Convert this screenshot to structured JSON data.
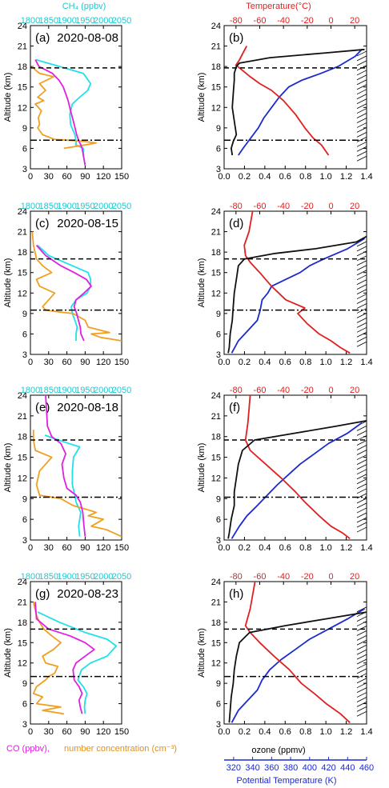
{
  "figure": {
    "ch4_axis_title": "CH₄ (ppbv)",
    "temp_axis_title": "Temperature(°C)",
    "ozone_axis_title": "ozone (ppmv)",
    "theta_axis_title": "Potential Temperature (K)",
    "co_legend": "CO (ppbv),",
    "nc_legend": "number concentration (cm⁻³)",
    "ylabel": "Altitude (km)"
  },
  "colors": {
    "co": "#e020e0",
    "ch4": "#20e0e8",
    "nc": "#f0a020",
    "temperature": "#e02020",
    "ozone": "#101010",
    "theta": "#1a2ad0",
    "wind": "#000000"
  },
  "axes": {
    "altitude": {
      "min": 3,
      "max": 24,
      "ticks": [
        "3",
        "6",
        "9",
        "12",
        "15",
        "18",
        "21",
        "24"
      ],
      "tick_values": [
        3,
        6,
        9,
        12,
        15,
        18,
        21,
        24
      ]
    },
    "co": {
      "min": 0,
      "max": 150,
      "ticks": [
        "0",
        "30",
        "60",
        "90",
        "120",
        "150"
      ],
      "tick_values": [
        0,
        30,
        60,
        90,
        120,
        150
      ]
    },
    "ch4": {
      "min": 1800,
      "max": 2050,
      "ticks": [
        "1800",
        "1850",
        "1900",
        "1950",
        "2000",
        "2050"
      ],
      "tick_values": [
        1800,
        1850,
        1900,
        1950,
        2000,
        2050
      ]
    },
    "ozone": {
      "min": 0,
      "max": 1.4,
      "ticks": [
        "0.0",
        "0.2",
        "0.4",
        "0.6",
        "0.8",
        "1.0",
        "1.2",
        "1.4"
      ],
      "tick_values": [
        0,
        0.2,
        0.4,
        0.6,
        0.8,
        1.0,
        1.2,
        1.4
      ]
    },
    "temperature": {
      "min": -90,
      "max": 30,
      "ticks": [
        "-80",
        "-60",
        "-40",
        "-20",
        "0",
        "20"
      ],
      "tick_values": [
        -80,
        -60,
        -40,
        -20,
        0,
        20
      ]
    },
    "theta": {
      "min": 310,
      "max": 460,
      "ticks": [
        "320",
        "340",
        "360",
        "380",
        "400",
        "420",
        "440",
        "460"
      ],
      "tick_values": [
        320,
        340,
        360,
        380,
        400,
        420,
        440,
        460
      ]
    }
  },
  "chart_data": [
    {
      "type": "line",
      "panel": "(a)",
      "date": "2020-08-08",
      "series": [
        {
          "name": "CO (ppbv)",
          "x": [
            90,
            87,
            85,
            83,
            80,
            76,
            72,
            66,
            62,
            58,
            54,
            47,
            36,
            14,
            8
          ],
          "y": [
            3.5,
            5,
            6,
            6.5,
            7,
            8,
            9.5,
            11.5,
            13,
            14,
            15,
            16,
            17,
            18,
            19
          ]
        },
        {
          "name": "CH4 (ppbv)",
          "x": [
            1950,
            1945,
            1945,
            1925,
            1925,
            1922,
            1910,
            1908,
            1915,
            1935,
            1957,
            1965,
            1945,
            1880,
            1815
          ],
          "y": [
            3.5,
            5,
            6,
            6.5,
            7,
            8,
            9.5,
            11,
            12.5,
            13.5,
            14.5,
            15.5,
            17,
            18,
            19
          ]
        },
        {
          "name": "number concentration (cm-3)",
          "x": [
            55,
            90,
            108,
            80,
            40,
            20,
            12,
            15,
            13,
            18,
            8,
            22,
            12,
            25,
            15,
            38,
            15,
            8,
            3
          ],
          "y": [
            6,
            6.5,
            6.8,
            7.1,
            7.3,
            8,
            9,
            9.5,
            10.5,
            11.5,
            12.5,
            13,
            13.5,
            14.5,
            15.5,
            16.5,
            17,
            17.5,
            18
          ]
        }
      ],
      "trop_lines": {
        "cold_point": 17.8,
        "lapse_rate": 7.2
      }
    },
    {
      "type": "line",
      "panel": "(b)",
      "date": "2020-08-08",
      "series": [
        {
          "name": "ozone (ppmv)",
          "x": [
            0.08,
            0.07,
            0.09,
            0.12,
            0.1,
            0.08,
            0.09,
            0.1,
            0.1,
            0.11,
            0.12,
            0.15,
            0.45,
            1.0,
            1.38
          ],
          "y": [
            5,
            6,
            7,
            8,
            10,
            12,
            14,
            16,
            17,
            17.5,
            18,
            18.5,
            19.3,
            20,
            20.5
          ]
        },
        {
          "name": "Temperature",
          "x": [
            -2,
            -8,
            -15,
            -22,
            -30,
            -40,
            -50,
            -60,
            -68,
            -75,
            -80,
            -77,
            -74,
            -71
          ],
          "y": [
            5,
            6.5,
            7.5,
            9,
            11,
            13,
            14.5,
            15.5,
            16.5,
            17.5,
            18.2,
            19,
            20,
            21
          ]
        },
        {
          "name": "Potential Temperature (K)",
          "x": [
            325,
            330,
            338,
            346,
            352,
            360,
            368,
            378,
            392,
            412,
            430,
            448,
            455
          ],
          "y": [
            5,
            6,
            7.5,
            9,
            10.5,
            12,
            13.5,
            15,
            16,
            17,
            18,
            19.5,
            20.5
          ]
        }
      ],
      "trop_lines": {
        "cold_point": 17.8,
        "lapse_rate": 7.2
      }
    },
    {
      "type": "line",
      "panel": "(c)",
      "date": "2020-08-15",
      "series": [
        {
          "name": "CO (ppbv)",
          "x": [
            88,
            83,
            82,
            79,
            76,
            72,
            75,
            88,
            100,
            92,
            72,
            50,
            25,
            10
          ],
          "y": [
            5,
            6,
            7,
            8,
            9,
            10,
            11,
            12,
            13,
            14,
            15,
            16,
            17.5,
            19
          ]
        },
        {
          "name": "CH4 (ppbv)",
          "x": [
            1925,
            1925,
            1928,
            1922,
            1915,
            1912,
            1925,
            1955,
            1965,
            1965,
            1958,
            1915,
            1850,
            1820
          ],
          "y": [
            5,
            6,
            7,
            8,
            9,
            10,
            11,
            12,
            13,
            14,
            15,
            16,
            17.5,
            19
          ]
        },
        {
          "name": "number concentration (cm-3)",
          "x": [
            150,
            115,
            100,
            130,
            95,
            90,
            80,
            70,
            50,
            25,
            20,
            30,
            40,
            15,
            10,
            35,
            20,
            10,
            5,
            3
          ],
          "y": [
            5,
            5.5,
            6,
            6.2,
            7,
            8,
            8.5,
            9,
            9.2,
            9.5,
            10,
            11,
            12,
            13,
            14,
            15,
            16,
            17,
            19,
            21
          ]
        }
      ],
      "trop_lines": {
        "cold_point": 17,
        "lapse_rate": 9.5
      }
    },
    {
      "type": "line",
      "panel": "(d)",
      "date": "2020-08-15",
      "series": [
        {
          "name": "ozone (ppmv)",
          "x": [
            0.04,
            0.05,
            0.06,
            0.08,
            0.09,
            0.1,
            0.12,
            0.14,
            0.2,
            0.5,
            0.9,
            1.3,
            1.4
          ],
          "y": [
            3.2,
            4,
            6,
            8,
            10,
            12,
            14,
            16,
            17,
            17.8,
            18.5,
            19.5,
            20.3
          ]
        },
        {
          "name": "Temperature",
          "x": [
            16,
            8,
            0,
            -10,
            -20,
            -28,
            -22,
            -38,
            -50,
            -60,
            -68,
            -72,
            -73,
            -69,
            -66
          ],
          "y": [
            3.2,
            4,
            5,
            6,
            7.5,
            9,
            9.8,
            11,
            13,
            15,
            16.5,
            17.5,
            19,
            21,
            24
          ]
        },
        {
          "name": "Potential Temperature (K)",
          "x": [
            318,
            325,
            335,
            345,
            348,
            350,
            356,
            360,
            375,
            390,
            400,
            415,
            440,
            458
          ],
          "y": [
            3.2,
            5,
            6.5,
            8,
            9.5,
            11,
            12,
            13,
            14,
            15,
            16,
            17,
            18.5,
            20
          ]
        }
      ],
      "trop_lines": {
        "cold_point": 17,
        "lapse_rate": 9.5
      }
    },
    {
      "type": "line",
      "panel": "(e)",
      "date": "2020-08-18",
      "series": [
        {
          "name": "CO (ppbv)",
          "x": [
            90,
            88,
            86,
            82,
            75,
            60,
            55,
            52,
            58,
            50,
            35,
            28,
            25
          ],
          "y": [
            3.5,
            5,
            7,
            8.5,
            9.5,
            10.5,
            12,
            14,
            15.5,
            17,
            18,
            19.5,
            24
          ]
        },
        {
          "name": "CH4 (ppbv)",
          "x": [
            1935,
            1932,
            1938,
            1925,
            1922,
            1915,
            1915,
            1918,
            1935,
            1905,
            1860,
            1840
          ],
          "y": [
            3.5,
            5,
            7,
            8.5,
            9.5,
            11,
            13,
            15,
            16.5,
            17,
            17.8,
            18.2
          ]
        },
        {
          "name": "number concentration (cm-3)",
          "x": [
            150,
            125,
            100,
            120,
            95,
            108,
            90,
            70,
            50,
            15,
            10,
            15,
            35,
            8,
            5,
            5
          ],
          "y": [
            3.5,
            4.5,
            5,
            6,
            6.5,
            7,
            7.5,
            8,
            9,
            9.5,
            11,
            13,
            15,
            16,
            17.5,
            19
          ]
        }
      ],
      "trop_lines": {
        "cold_point": 17.5,
        "lapse_rate": 9.2
      }
    },
    {
      "type": "line",
      "panel": "(f)",
      "date": "2020-08-18",
      "series": [
        {
          "name": "ozone (ppmv)",
          "x": [
            0.04,
            0.05,
            0.07,
            0.1,
            0.1,
            0.12,
            0.14,
            0.18,
            0.3,
            0.7,
            1.1,
            1.4
          ],
          "y": [
            3.2,
            4,
            6,
            8,
            10,
            12,
            14,
            16,
            17.5,
            18.5,
            19.5,
            20.3
          ]
        },
        {
          "name": "Temperature",
          "x": [
            16,
            10,
            0,
            -10,
            -22,
            -30,
            -42,
            -55,
            -68,
            -72,
            -70,
            -68
          ],
          "y": [
            3.2,
            4,
            5,
            6.5,
            8.5,
            10,
            12,
            14,
            16,
            17.5,
            20,
            24
          ]
        },
        {
          "name": "Potential Temperature (K)",
          "x": [
            318,
            326,
            334,
            345,
            352,
            366,
            378,
            390,
            405,
            420,
            440,
            455
          ],
          "y": [
            3.2,
            5,
            6.5,
            8,
            9,
            11,
            12.5,
            14,
            15.5,
            17,
            18.5,
            20
          ]
        }
      ],
      "trop_lines": {
        "cold_point": 17.5,
        "lapse_rate": 9.2
      }
    },
    {
      "type": "line",
      "panel": "(g)",
      "date": "2020-08-23",
      "series": [
        {
          "name": "CO (ppbv)",
          "x": [
            85,
            82,
            80,
            85,
            80,
            72,
            70,
            75,
            90,
            105,
            90,
            65,
            30,
            10,
            8
          ],
          "y": [
            4.5,
            5.5,
            6.5,
            7.5,
            8.5,
            9.5,
            11,
            12,
            13,
            14,
            15,
            16,
            17,
            18.5,
            21
          ]
        },
        {
          "name": "CH4 (ppbv)",
          "x": [
            1950,
            1948,
            1950,
            1955,
            1945,
            1930,
            1940,
            1965,
            2010,
            2035,
            2010,
            1950,
            1880,
            1820
          ],
          "y": [
            4.5,
            5.5,
            6.5,
            7.5,
            8.5,
            9.5,
            11,
            12,
            13,
            14.5,
            15.5,
            16.5,
            18,
            19.5
          ]
        },
        {
          "name": "number concentration (cm-3)",
          "x": [
            55,
            20,
            50,
            10,
            15,
            20,
            5,
            10,
            25,
            30,
            40,
            45,
            25,
            20,
            38,
            50,
            35,
            22,
            15,
            10,
            5
          ],
          "y": [
            4.5,
            5,
            5.5,
            6,
            6.5,
            7,
            7.5,
            8.5,
            9.5,
            10,
            10.5,
            11.5,
            12,
            13,
            14,
            15,
            16,
            17,
            18,
            19,
            21
          ]
        }
      ],
      "trop_lines": {
        "cold_point": 17,
        "lapse_rate": 10
      }
    },
    {
      "type": "line",
      "panel": "(h)",
      "date": "2020-08-23",
      "series": [
        {
          "name": "ozone (ppmv)",
          "x": [
            0.05,
            0.06,
            0.07,
            0.09,
            0.1,
            0.12,
            0.15,
            0.25,
            0.6,
            1.0,
            1.4
          ],
          "y": [
            3.2,
            5,
            7,
            9,
            11,
            13,
            15,
            16.5,
            17.5,
            18.5,
            19.5
          ]
        },
        {
          "name": "Temperature",
          "x": [
            16,
            8,
            -4,
            -14,
            -25,
            -35,
            -48,
            -60,
            -68,
            -72,
            -68,
            -64
          ],
          "y": [
            3.2,
            4.5,
            6,
            7.5,
            9,
            11,
            13,
            15,
            16.5,
            17.5,
            20,
            24
          ]
        },
        {
          "name": "Potential Temperature (K)",
          "x": [
            318,
            325,
            335,
            345,
            350,
            358,
            370,
            385,
            400,
            420,
            440,
            458
          ],
          "y": [
            3.2,
            5,
            6.5,
            8,
            9.5,
            11,
            12.5,
            14,
            15.5,
            17,
            18.5,
            20
          ]
        }
      ],
      "trop_lines": {
        "cold_point": 17,
        "lapse_rate": 10
      }
    }
  ]
}
